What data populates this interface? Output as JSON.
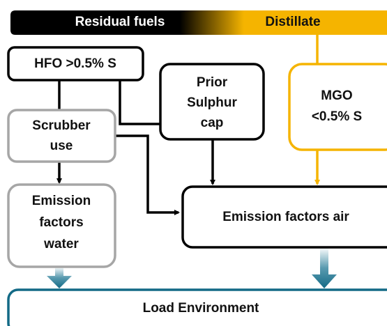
{
  "banner": {
    "left": "Residual fuels",
    "right": "Distillate"
  },
  "nodes": [
    {
      "lines": [
        "HFO >0.5% S"
      ]
    },
    {
      "lines": [
        "Prior",
        "Sulphur",
        "cap"
      ]
    },
    {
      "lines": [
        "MGO",
        "<0.5% S"
      ]
    },
    {
      "lines": [
        "Scrubber",
        "use"
      ]
    },
    {
      "lines": [
        "Emission",
        "factors",
        "water"
      ]
    },
    {
      "lines": [
        "Emission factors air"
      ]
    },
    {
      "lines": [
        "Load Environment"
      ]
    }
  ]
}
